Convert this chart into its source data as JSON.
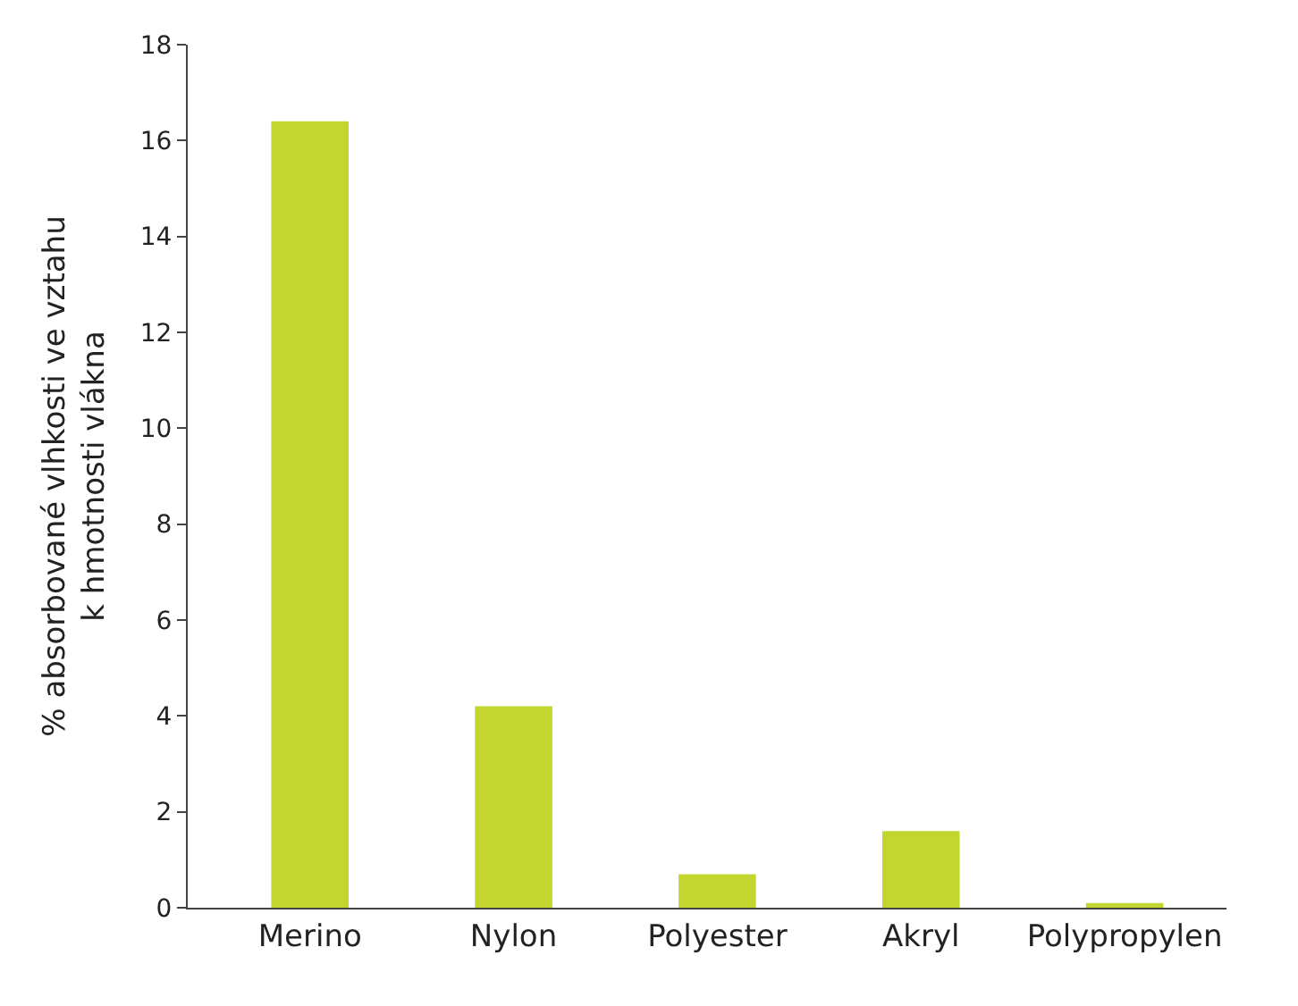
{
  "chart_data": {
    "type": "bar",
    "ylabel": "% absorbované vlhkosti ve vztahu\nk hmotnosti vlákna",
    "categories": [
      "Merino",
      "Nylon",
      "Polyester",
      "Akryl",
      "Polypropylen"
    ],
    "values": [
      16.4,
      4.2,
      0.7,
      1.6,
      0.1
    ],
    "color": "#c3d62f",
    "ylim": [
      0,
      18
    ],
    "yticks": [
      0,
      2,
      4,
      6,
      8,
      10,
      12,
      14,
      16,
      18
    ],
    "grid": false
  }
}
